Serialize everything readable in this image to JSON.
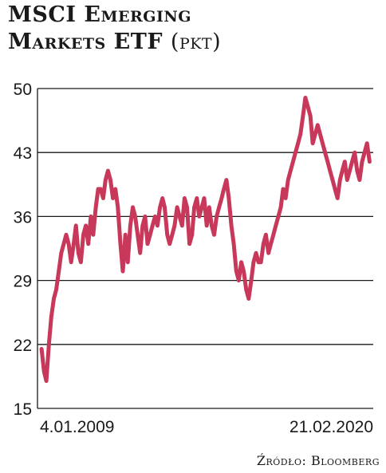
{
  "title_line1": "MSCI Emerging",
  "title_line2": "Markets ETF",
  "unit": "(pkt)",
  "source": "Źródło: Bloomberg",
  "colors": {
    "line": "#c8385a",
    "grid": "#1a1a1a"
  },
  "chart_data": {
    "type": "line",
    "title": "MSCI Emerging Markets ETF",
    "ylabel": "pkt",
    "ylim": [
      15,
      50
    ],
    "yticks": [
      15,
      22,
      29,
      36,
      43,
      50
    ],
    "xtick_labels": [
      "4.01.2009",
      "21.02.2020"
    ],
    "x_range": [
      "2009-01-04",
      "2020-02-21"
    ],
    "grid": true,
    "series": [
      {
        "x": [
          "2009-01",
          "2009-02",
          "2009-03",
          "2009-04",
          "2009-05",
          "2009-06",
          "2009-07",
          "2009-08",
          "2009-09",
          "2009-10",
          "2009-11",
          "2009-12",
          "2010-01",
          "2010-02",
          "2010-03",
          "2010-04",
          "2010-05",
          "2010-06",
          "2010-07",
          "2010-08",
          "2010-09",
          "2010-10",
          "2010-11",
          "2010-12",
          "2011-01",
          "2011-02",
          "2011-03",
          "2011-04",
          "2011-05",
          "2011-06",
          "2011-07",
          "2011-08",
          "2011-09",
          "2011-10",
          "2011-11",
          "2011-12",
          "2012-01",
          "2012-02",
          "2012-03",
          "2012-04",
          "2012-05",
          "2012-06",
          "2012-07",
          "2012-08",
          "2012-09",
          "2012-10",
          "2012-11",
          "2012-12",
          "2013-01",
          "2013-02",
          "2013-03",
          "2013-04",
          "2013-05",
          "2013-06",
          "2013-07",
          "2013-08",
          "2013-09",
          "2013-10",
          "2013-11",
          "2013-12",
          "2014-01",
          "2014-02",
          "2014-03",
          "2014-04",
          "2014-05",
          "2014-06",
          "2014-07",
          "2014-08",
          "2014-09",
          "2014-10",
          "2014-11",
          "2014-12",
          "2015-01",
          "2015-02",
          "2015-03",
          "2015-04",
          "2015-05",
          "2015-06",
          "2015-07",
          "2015-08",
          "2015-09",
          "2015-10",
          "2015-11",
          "2015-12",
          "2016-01",
          "2016-02",
          "2016-03",
          "2016-04",
          "2016-05",
          "2016-06",
          "2016-07",
          "2016-08",
          "2016-09",
          "2016-10",
          "2016-11",
          "2016-12",
          "2017-01",
          "2017-02",
          "2017-03",
          "2017-04",
          "2017-05",
          "2017-06",
          "2017-07",
          "2017-08",
          "2017-09",
          "2017-10",
          "2017-11",
          "2017-12",
          "2018-01",
          "2018-02",
          "2018-03",
          "2018-04",
          "2018-05",
          "2018-06",
          "2018-07",
          "2018-08",
          "2018-09",
          "2018-10",
          "2018-11",
          "2018-12",
          "2019-01",
          "2019-02",
          "2019-03",
          "2019-04",
          "2019-05",
          "2019-06",
          "2019-07",
          "2019-08",
          "2019-09",
          "2019-10",
          "2019-11",
          "2019-12",
          "2020-01",
          "2020-02"
        ],
        "values": [
          21.5,
          19,
          18,
          22,
          25,
          27,
          28,
          30,
          32,
          33,
          34,
          33,
          31,
          33,
          35,
          32,
          31,
          34,
          35,
          33,
          36,
          34,
          37,
          39,
          39,
          38,
          40,
          41,
          40,
          38,
          39,
          37,
          33,
          30,
          34,
          31,
          35,
          37,
          36,
          34,
          32,
          35,
          36,
          33,
          34,
          35,
          36,
          35,
          37,
          38,
          37,
          34,
          33,
          34,
          35,
          37,
          36,
          35,
          38,
          37,
          33,
          34,
          37,
          38,
          36,
          37,
          38,
          35,
          37,
          35,
          34,
          36,
          37,
          38,
          39,
          40,
          38,
          35,
          33,
          30,
          29,
          31,
          30,
          28,
          27,
          29,
          31,
          32,
          31,
          31,
          33,
          34,
          32,
          33,
          34,
          35,
          36,
          37,
          39,
          38,
          40,
          41,
          42,
          43,
          44,
          45,
          47,
          49,
          48,
          47,
          44,
          45,
          46,
          45,
          44,
          43,
          42,
          41,
          40,
          39,
          38,
          40,
          41,
          42,
          40,
          41,
          42,
          43,
          41,
          40,
          42,
          43,
          44,
          42
        ]
      }
    ]
  }
}
